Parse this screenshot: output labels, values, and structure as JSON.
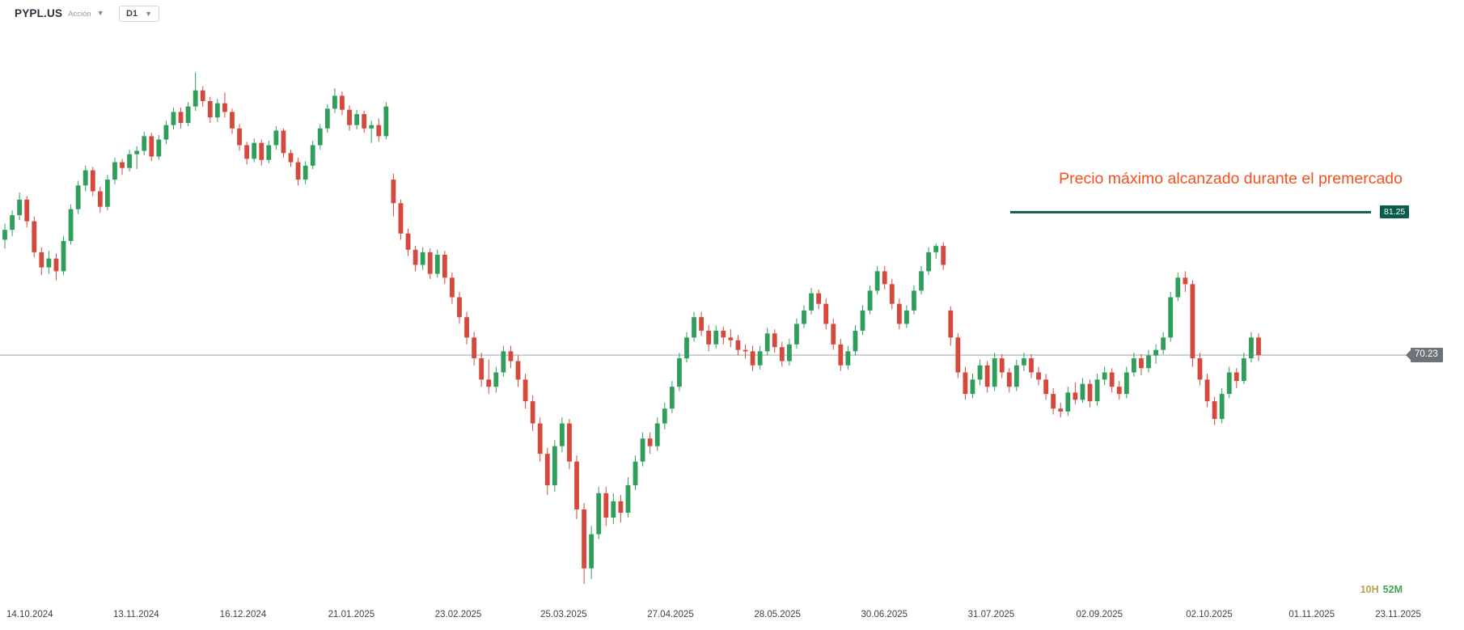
{
  "header": {
    "symbol": "PYPL.US",
    "instrument_type": "Acción",
    "timeframe": "D1"
  },
  "annotation": {
    "text": "Precio máximo alcanzado durante el premercado",
    "color": "#f4511e"
  },
  "trendline": {
    "price": "81.25",
    "color": "#0a5c4e"
  },
  "last_price": {
    "value": "70.23",
    "badge_color": "#6d7378",
    "line_color": "#a8afb5"
  },
  "countdown": {
    "hours": "10H",
    "minutes": "52M",
    "hours_color": "#b8a04e",
    "minutes_color": "#3fa558"
  },
  "colors": {
    "up": "#2f9e5b",
    "down": "#d5483c",
    "background": "#ffffff"
  },
  "chart_data": {
    "type": "candlestick",
    "symbol": "PYPL.US",
    "timeframe": "D1",
    "scale": "logarithmic",
    "title": "PYPL.US daily candlestick chart",
    "ylim": [
      54.61,
      96.57
    ],
    "y_ticks": [
      "96.57",
      "93.71",
      "90.94",
      "88.25",
      "85.64",
      "83.11",
      "80.66",
      "78.27",
      "75.96",
      "73.71",
      "71.53",
      "69.42",
      "67.37",
      "65.38",
      "63.44",
      "61.57",
      "59.75",
      "57.98",
      "56.27",
      "54.61"
    ],
    "x_ticks": [
      {
        "label": "14.10.2024",
        "pos": 0.024
      },
      {
        "label": "13.11.2024",
        "pos": 0.093
      },
      {
        "label": "16.12.2024",
        "pos": 0.166
      },
      {
        "label": "21.01.2025",
        "pos": 0.24
      },
      {
        "label": "23.02.2025",
        "pos": 0.313
      },
      {
        "label": "25.03.2025",
        "pos": 0.385
      },
      {
        "label": "27.04.2025",
        "pos": 0.458
      },
      {
        "label": "28.05.2025",
        "pos": 0.531
      },
      {
        "label": "30.06.2025",
        "pos": 0.604
      },
      {
        "label": "31.07.2025",
        "pos": 0.677
      },
      {
        "label": "02.09.2025",
        "pos": 0.751
      },
      {
        "label": "02.10.2025",
        "pos": 0.826
      },
      {
        "label": "01.11.2025",
        "pos": 0.896
      },
      {
        "label": "23.11.2025",
        "pos": 0.955
      }
    ],
    "candles": [
      [
        79.0,
        80.3,
        78.3,
        79.8
      ],
      [
        79.8,
        81.4,
        79.3,
        81.0
      ],
      [
        81.0,
        82.9,
        80.6,
        82.3
      ],
      [
        82.3,
        82.6,
        80.0,
        80.5
      ],
      [
        80.5,
        80.9,
        77.6,
        78.0
      ],
      [
        78.0,
        78.4,
        76.2,
        76.8
      ],
      [
        76.8,
        78.1,
        76.3,
        77.5
      ],
      [
        77.5,
        77.9,
        75.8,
        76.5
      ],
      [
        76.5,
        79.3,
        76.2,
        78.9
      ],
      [
        78.9,
        81.9,
        78.6,
        81.5
      ],
      [
        81.5,
        83.9,
        81.1,
        83.5
      ],
      [
        83.5,
        85.2,
        83.0,
        84.8
      ],
      [
        84.8,
        85.1,
        82.6,
        83.0
      ],
      [
        83.0,
        83.4,
        81.2,
        81.7
      ],
      [
        81.7,
        84.4,
        81.4,
        84.0
      ],
      [
        84.0,
        85.9,
        83.6,
        85.5
      ],
      [
        85.5,
        85.8,
        84.4,
        85.0
      ],
      [
        85.0,
        86.6,
        84.7,
        86.2
      ],
      [
        86.2,
        86.9,
        84.9,
        86.5
      ],
      [
        86.5,
        88.2,
        86.1,
        87.8
      ],
      [
        87.8,
        88.1,
        85.6,
        86.0
      ],
      [
        86.0,
        87.9,
        85.7,
        87.5
      ],
      [
        87.5,
        89.2,
        87.1,
        88.8
      ],
      [
        88.8,
        90.4,
        88.4,
        90.0
      ],
      [
        90.0,
        90.4,
        88.5,
        89.0
      ],
      [
        89.0,
        90.9,
        88.7,
        90.5
      ],
      [
        90.5,
        93.7,
        90.1,
        92.0
      ],
      [
        92.0,
        92.4,
        90.5,
        91.0
      ],
      [
        91.0,
        91.4,
        89.0,
        89.5
      ],
      [
        89.5,
        91.2,
        89.1,
        90.8
      ],
      [
        90.8,
        91.8,
        89.5,
        90.0
      ],
      [
        90.0,
        90.3,
        88.0,
        88.5
      ],
      [
        88.5,
        88.9,
        86.5,
        87.0
      ],
      [
        87.0,
        87.3,
        85.3,
        85.8
      ],
      [
        85.8,
        87.6,
        85.5,
        87.2
      ],
      [
        87.2,
        87.5,
        85.2,
        85.7
      ],
      [
        85.7,
        87.4,
        85.4,
        87.0
      ],
      [
        87.0,
        88.7,
        86.6,
        88.3
      ],
      [
        88.3,
        88.5,
        85.9,
        86.3
      ],
      [
        86.3,
        86.6,
        85.1,
        85.5
      ],
      [
        85.5,
        85.9,
        83.5,
        84.0
      ],
      [
        84.0,
        85.6,
        83.6,
        85.2
      ],
      [
        85.2,
        87.4,
        84.9,
        87.0
      ],
      [
        87.0,
        88.9,
        86.6,
        88.5
      ],
      [
        88.5,
        90.7,
        88.1,
        90.3
      ],
      [
        90.3,
        92.2,
        89.9,
        91.5
      ],
      [
        91.5,
        91.9,
        89.7,
        90.2
      ],
      [
        90.2,
        90.6,
        88.3,
        88.8
      ],
      [
        88.8,
        90.2,
        88.4,
        89.8
      ],
      [
        89.8,
        90.1,
        88.1,
        88.5
      ],
      [
        88.5,
        89.2,
        87.2,
        88.8
      ],
      [
        88.8,
        89.4,
        87.3,
        87.8
      ],
      [
        87.8,
        90.9,
        87.5,
        90.5
      ],
      [
        84.0,
        84.5,
        80.9,
        82.0
      ],
      [
        82.0,
        82.3,
        79.0,
        79.5
      ],
      [
        79.5,
        79.9,
        77.7,
        78.2
      ],
      [
        78.2,
        78.5,
        76.5,
        77.0
      ],
      [
        77.0,
        78.4,
        76.6,
        78.0
      ],
      [
        78.0,
        78.3,
        75.9,
        76.3
      ],
      [
        76.3,
        78.2,
        76.0,
        77.8
      ],
      [
        77.8,
        78.1,
        75.5,
        76.0
      ],
      [
        76.0,
        76.4,
        74.0,
        74.5
      ],
      [
        74.5,
        74.9,
        72.5,
        73.0
      ],
      [
        73.0,
        73.4,
        71.0,
        71.5
      ],
      [
        71.5,
        71.9,
        69.5,
        70.0
      ],
      [
        70.0,
        70.4,
        68.0,
        68.5
      ],
      [
        68.5,
        69.9,
        67.5,
        68.0
      ],
      [
        68.0,
        69.4,
        67.6,
        69.0
      ],
      [
        69.0,
        70.9,
        68.7,
        70.5
      ],
      [
        70.5,
        70.9,
        69.3,
        69.8
      ],
      [
        69.8,
        70.2,
        68.0,
        68.5
      ],
      [
        68.5,
        68.9,
        66.5,
        67.0
      ],
      [
        67.0,
        67.4,
        65.0,
        65.5
      ],
      [
        65.5,
        65.9,
        63.0,
        63.5
      ],
      [
        63.5,
        63.9,
        60.9,
        61.5
      ],
      [
        61.5,
        64.4,
        61.1,
        64.0
      ],
      [
        64.0,
        65.9,
        63.6,
        65.5
      ],
      [
        65.5,
        65.8,
        62.5,
        63.0
      ],
      [
        63.0,
        63.4,
        59.4,
        60.0
      ],
      [
        60.0,
        60.4,
        55.6,
        56.5
      ],
      [
        56.5,
        59.0,
        55.9,
        58.5
      ],
      [
        58.5,
        61.4,
        58.2,
        61.0
      ],
      [
        61.0,
        61.4,
        59.0,
        59.5
      ],
      [
        59.5,
        61.0,
        59.1,
        60.5
      ],
      [
        60.5,
        60.9,
        59.2,
        59.8
      ],
      [
        59.8,
        62.0,
        59.5,
        61.5
      ],
      [
        61.5,
        63.4,
        61.2,
        63.0
      ],
      [
        63.0,
        64.9,
        62.7,
        64.5
      ],
      [
        64.5,
        64.9,
        63.5,
        64.0
      ],
      [
        64.0,
        65.9,
        63.7,
        65.5
      ],
      [
        65.5,
        66.9,
        65.1,
        66.5
      ],
      [
        66.5,
        68.4,
        66.2,
        68.0
      ],
      [
        68.0,
        70.4,
        67.7,
        70.0
      ],
      [
        70.0,
        71.9,
        69.7,
        71.5
      ],
      [
        71.5,
        73.4,
        71.2,
        73.0
      ],
      [
        73.0,
        73.4,
        71.6,
        72.0
      ],
      [
        72.0,
        72.4,
        70.5,
        71.0
      ],
      [
        71.0,
        72.4,
        70.7,
        72.0
      ],
      [
        72.0,
        72.3,
        71.0,
        71.5
      ],
      [
        71.5,
        72.1,
        70.8,
        71.3
      ],
      [
        71.3,
        71.7,
        70.2,
        70.6
      ],
      [
        70.6,
        71.0,
        70.0,
        70.5
      ],
      [
        70.5,
        70.9,
        69.1,
        69.5
      ],
      [
        69.5,
        70.9,
        69.2,
        70.5
      ],
      [
        70.5,
        72.2,
        70.2,
        71.8
      ],
      [
        71.8,
        72.1,
        70.4,
        70.8
      ],
      [
        70.8,
        71.2,
        69.4,
        69.8
      ],
      [
        69.8,
        71.4,
        69.5,
        71.0
      ],
      [
        71.0,
        72.9,
        70.7,
        72.5
      ],
      [
        72.5,
        73.9,
        72.2,
        73.5
      ],
      [
        73.5,
        75.2,
        73.2,
        74.8
      ],
      [
        74.8,
        75.1,
        73.6,
        74.0
      ],
      [
        74.0,
        74.4,
        72.1,
        72.5
      ],
      [
        72.5,
        72.9,
        70.6,
        71.0
      ],
      [
        71.0,
        71.4,
        69.1,
        69.5
      ],
      [
        69.5,
        70.9,
        69.2,
        70.5
      ],
      [
        70.5,
        72.4,
        70.2,
        72.0
      ],
      [
        72.0,
        73.9,
        71.7,
        73.5
      ],
      [
        73.5,
        75.4,
        73.2,
        75.0
      ],
      [
        75.0,
        76.9,
        74.7,
        76.5
      ],
      [
        76.5,
        76.9,
        75.1,
        75.5
      ],
      [
        75.5,
        75.9,
        73.6,
        74.0
      ],
      [
        74.0,
        74.4,
        72.1,
        72.5
      ],
      [
        72.5,
        73.9,
        72.2,
        73.5
      ],
      [
        73.5,
        75.4,
        73.2,
        75.0
      ],
      [
        75.0,
        76.9,
        74.7,
        76.5
      ],
      [
        76.5,
        78.4,
        76.2,
        78.0
      ],
      [
        78.0,
        78.7,
        77.5,
        78.5
      ],
      [
        78.5,
        78.8,
        76.6,
        77.0
      ],
      [
        73.5,
        73.8,
        70.9,
        71.5
      ],
      [
        71.5,
        71.8,
        68.6,
        69.0
      ],
      [
        69.0,
        69.4,
        67.1,
        67.5
      ],
      [
        67.5,
        68.9,
        67.2,
        68.5
      ],
      [
        68.5,
        69.9,
        68.1,
        69.5
      ],
      [
        69.5,
        69.8,
        67.6,
        68.0
      ],
      [
        68.0,
        70.4,
        67.7,
        70.0
      ],
      [
        70.0,
        70.3,
        68.6,
        69.0
      ],
      [
        69.0,
        69.3,
        67.6,
        68.0
      ],
      [
        68.0,
        69.9,
        67.7,
        69.5
      ],
      [
        69.5,
        70.4,
        69.1,
        70.0
      ],
      [
        70.0,
        70.3,
        68.6,
        69.0
      ],
      [
        69.0,
        69.4,
        68.1,
        68.5
      ],
      [
        68.5,
        68.9,
        67.1,
        67.5
      ],
      [
        67.5,
        67.9,
        66.1,
        66.5
      ],
      [
        66.5,
        66.9,
        65.9,
        66.3
      ],
      [
        66.3,
        68.0,
        66.0,
        67.6
      ],
      [
        67.6,
        68.3,
        66.8,
        67.1
      ],
      [
        67.1,
        68.6,
        66.9,
        68.2
      ],
      [
        68.2,
        68.5,
        66.6,
        67.0
      ],
      [
        67.0,
        68.9,
        66.7,
        68.5
      ],
      [
        68.5,
        69.4,
        68.1,
        69.0
      ],
      [
        69.0,
        69.3,
        67.6,
        68.0
      ],
      [
        68.0,
        68.4,
        67.1,
        67.5
      ],
      [
        67.5,
        69.4,
        67.2,
        69.0
      ],
      [
        69.0,
        70.4,
        68.7,
        70.0
      ],
      [
        70.0,
        70.3,
        68.8,
        69.3
      ],
      [
        69.3,
        70.6,
        69.0,
        70.2
      ],
      [
        70.2,
        71.0,
        69.6,
        70.6
      ],
      [
        70.6,
        71.9,
        70.3,
        71.5
      ],
      [
        71.5,
        74.9,
        71.2,
        74.5
      ],
      [
        74.5,
        76.4,
        74.2,
        76.0
      ],
      [
        76.0,
        76.5,
        74.9,
        75.5
      ],
      [
        75.5,
        75.8,
        69.4,
        70.0
      ],
      [
        70.0,
        70.4,
        68.1,
        68.5
      ],
      [
        68.5,
        68.9,
        66.6,
        67.0
      ],
      [
        67.0,
        67.3,
        65.4,
        65.8
      ],
      [
        65.8,
        67.9,
        65.5,
        67.5
      ],
      [
        67.5,
        69.4,
        67.2,
        69.0
      ],
      [
        69.0,
        69.3,
        67.9,
        68.4
      ],
      [
        68.4,
        70.4,
        68.2,
        70.0
      ],
      [
        70.0,
        71.9,
        69.7,
        71.5
      ],
      [
        71.5,
        71.8,
        69.8,
        70.23
      ]
    ]
  }
}
